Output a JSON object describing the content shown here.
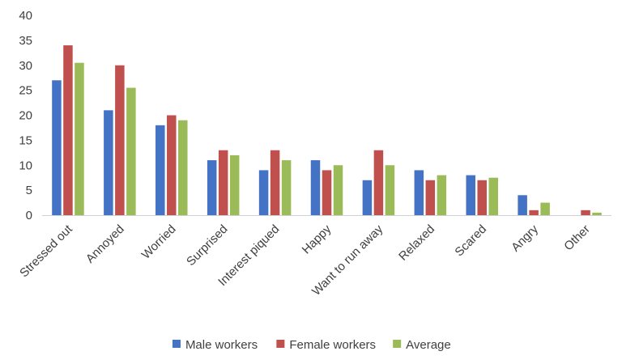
{
  "chart_data": {
    "type": "bar",
    "categories": [
      "Stressed out",
      "Annoyed",
      "Worried",
      "Surprised",
      "Interest piqued",
      "Happy",
      "Want to run away",
      "Relaxed",
      "Scared",
      "Angry",
      "Other"
    ],
    "series": [
      {
        "name": "Male workers",
        "color": "#4472C4",
        "values": [
          27,
          21,
          18,
          11,
          9,
          11,
          7,
          9,
          8,
          4,
          0
        ]
      },
      {
        "name": "Female workers",
        "color": "#C0504D",
        "values": [
          34,
          30,
          20,
          13,
          13,
          9,
          13,
          7,
          7,
          1,
          1
        ]
      },
      {
        "name": "Average",
        "color": "#9BBB59",
        "values": [
          30.5,
          25.5,
          19,
          12,
          11,
          10,
          10,
          8,
          7.5,
          2.5,
          0.5
        ]
      }
    ],
    "ylim": [
      0,
      40
    ],
    "yticks": [
      0,
      5,
      10,
      15,
      20,
      25,
      30,
      35,
      40
    ],
    "grid": false,
    "legend_position": "bottom"
  }
}
